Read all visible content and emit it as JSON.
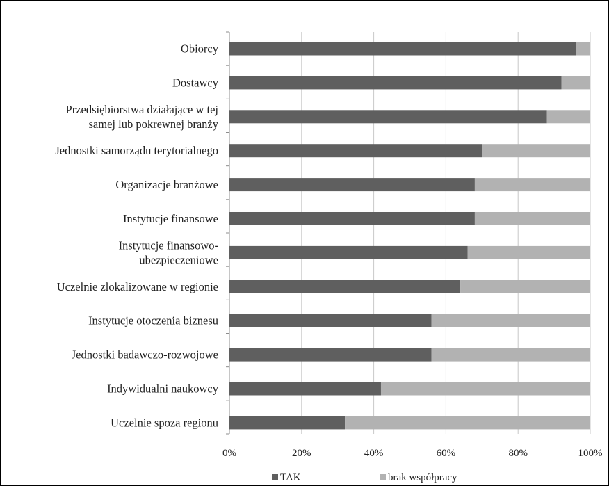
{
  "chart_data": {
    "type": "bar",
    "orientation": "horizontal",
    "stacked": true,
    "percent_stacked": true,
    "categories": [
      "Obiorcy",
      "Dostawcy",
      [
        "Przedsiębiorstwa działające w tej",
        "samej lub pokrewnej branży"
      ],
      "Jednostki samorządu terytorialnego",
      "Organizacje branżowe",
      "Instytucje finansowe",
      [
        "Instytucje finansowo-",
        "ubezpieczeniowe"
      ],
      "Uczelnie zlokalizowane w regionie",
      "Instytucje otoczenia biznesu",
      "Jednostki badawczo-rozwojowe",
      "Indywidualni naukowcy",
      "Uczelnie spoza regionu"
    ],
    "series": [
      {
        "name": "TAK",
        "color": "#5f5f5f",
        "values": [
          96,
          92,
          88,
          70,
          68,
          68,
          66,
          64,
          56,
          56,
          42,
          32
        ]
      },
      {
        "name": "brak współpracy",
        "color": "#b2b2b2",
        "values": [
          4,
          8,
          12,
          30,
          32,
          32,
          34,
          36,
          44,
          44,
          58,
          68
        ]
      }
    ],
    "x_ticks": [
      "0%",
      "20%",
      "40%",
      "60%",
      "80%",
      "100%"
    ],
    "xlim": [
      0,
      100
    ],
    "grid": true,
    "legend_position": "bottom",
    "title": "",
    "xlabel": "",
    "ylabel": ""
  }
}
